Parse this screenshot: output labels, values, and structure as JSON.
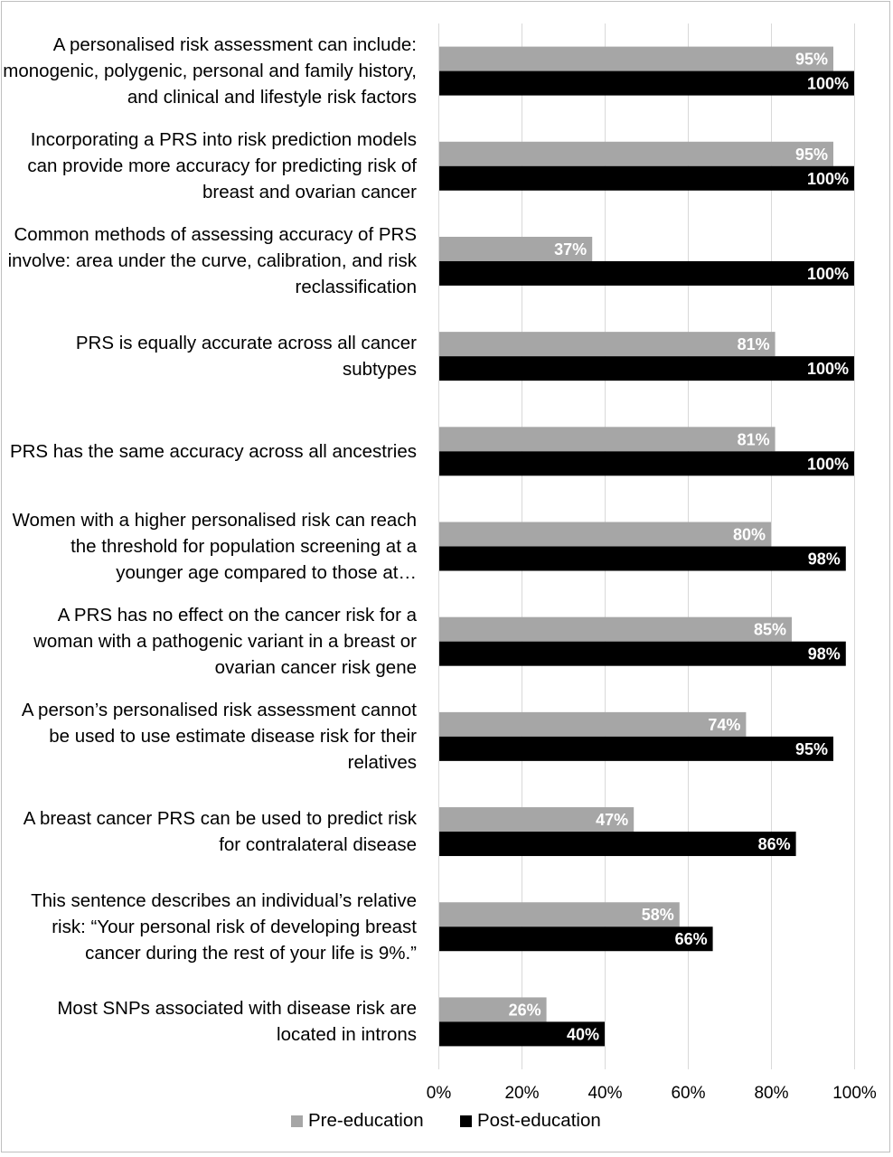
{
  "chart_data": {
    "type": "bar",
    "orientation": "horizontal",
    "categories": [
      "A personalised risk assessment can include: monogenic, polygenic, personal and family history, and clinical and lifestyle risk factors",
      "Incorporating a PRS into risk prediction models can provide more accuracy for predicting risk of breast and ovarian cancer",
      "Common methods of assessing accuracy of PRS involve: area under the curve, calibration, and risk reclassification",
      "PRS is equally accurate across all cancer subtypes",
      "PRS has the same accuracy across all ancestries",
      "Women with a higher personalised risk can reach the threshold for population screening at a younger age compared to those at…",
      "A PRS has no effect on the cancer risk for a woman with a pathogenic variant in a breast or ovarian cancer risk gene",
      "A person’s personalised risk assessment cannot be used to use estimate disease risk for their relatives",
      "A breast cancer PRS can be used to predict risk for contralateral disease",
      "This sentence describes an individual’s relative risk: “Your personal risk of developing breast cancer during the rest of your life is 9%.”",
      "Most SNPs associated with disease risk are located in introns"
    ],
    "series": [
      {
        "name": "Pre-education",
        "color": "#a6a6a6",
        "values": [
          95,
          95,
          37,
          81,
          81,
          80,
          85,
          74,
          47,
          58,
          26
        ],
        "labels": [
          "95%",
          "95%",
          "37%",
          "81%",
          "81%",
          "80%",
          "85%",
          "74%",
          "47%",
          "58%",
          "26%"
        ]
      },
      {
        "name": "Post-education",
        "color": "#000000",
        "values": [
          100,
          100,
          100,
          100,
          100,
          98,
          98,
          95,
          86,
          66,
          40
        ],
        "labels": [
          "100%",
          "100%",
          "100%",
          "100%",
          "100%",
          "98%",
          "98%",
          "95%",
          "86%",
          "66%",
          "40%"
        ]
      }
    ],
    "xlim": [
      0,
      100
    ],
    "xticks": [
      "0%",
      "20%",
      "40%",
      "60%",
      "80%",
      "100%"
    ],
    "grid": true,
    "legend_position": "bottom"
  },
  "legend": {
    "pre_label": "Pre-education",
    "post_label": "Post-education"
  }
}
